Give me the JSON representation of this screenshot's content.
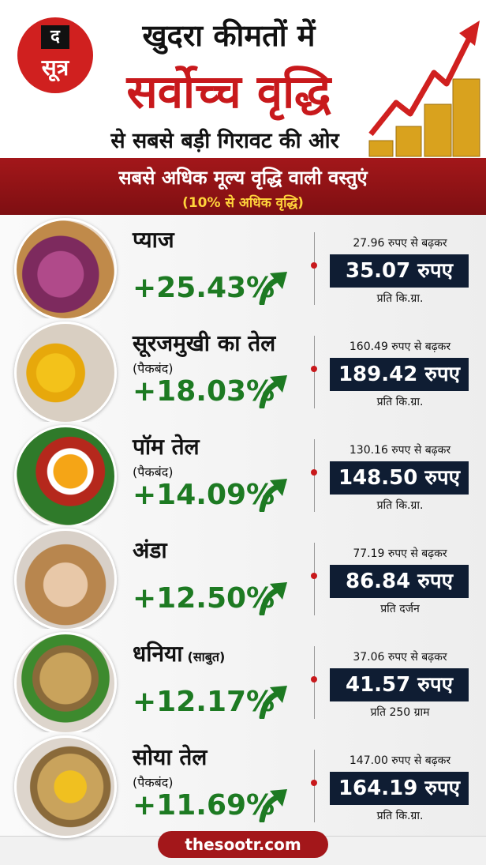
{
  "header": {
    "logo_top": "द",
    "logo_bottom": "सूत्र",
    "title_line1": "खुदरा कीमतों में",
    "title_line2": "सर्वोच्च वृद्धि",
    "title_line3": "से सबसे बड़ी गिरावट की ओर"
  },
  "banner": {
    "title": "सबसे अधिक मूल्य वृद्धि वाली वस्तुएं",
    "subtitle": "(10% से अधिक वृद्धि)"
  },
  "items": [
    {
      "name": "प्याज",
      "change": "+25.43%",
      "from": "27.96 रुपए से बढ़कर",
      "to": "35.07 रुपए",
      "unit": "प्रति कि.ग्रा."
    },
    {
      "name": "सूरजमुखी का तेल",
      "note": "(पैकबंद)",
      "change": "+18.03%",
      "from": "160.49 रुपए से बढ़कर",
      "to": "189.42 रुपए",
      "unit": "प्रति कि.ग्रा."
    },
    {
      "name": "पॉम तेल",
      "note": "(पैकबंद)",
      "change": "+14.09%",
      "from": "130.16 रुपए से बढ़कर",
      "to": "148.50 रुपए",
      "unit": "प्रति कि.ग्रा."
    },
    {
      "name": "अंडा",
      "change": "+12.50%",
      "from": "77.19 रुपए से बढ़कर",
      "to": "86.84 रुपए",
      "unit": "प्रति दर्जन"
    },
    {
      "name": "धनिया",
      "name_note": "(साबुत)",
      "change": "+12.17%",
      "from": "37.06 रुपए से बढ़कर",
      "to": "41.57 रुपए",
      "unit": "प्रति 250 ग्राम"
    },
    {
      "name": "सोया तेल",
      "note": "(पैकबंद)",
      "change": "+11.69%",
      "from": "147.00 रुपए से बढ़कर",
      "to": "164.19 रुपए",
      "unit": "प्रति कि.ग्रा."
    }
  ],
  "footer": {
    "site": "thesootr.com"
  }
}
